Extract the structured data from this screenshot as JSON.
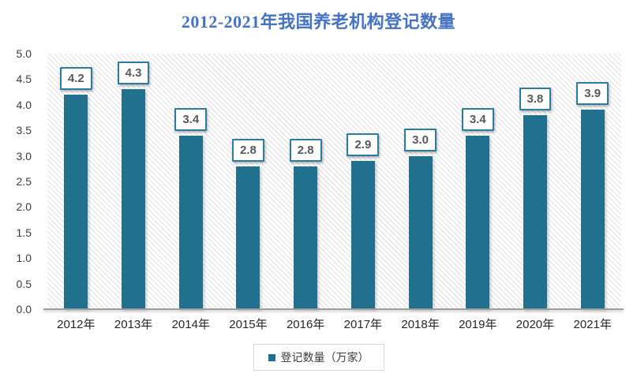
{
  "chart_data": {
    "type": "bar",
    "title": "2012-2021年我国养老机构登记数量",
    "categories": [
      "2012年",
      "2013年",
      "2014年",
      "2015年",
      "2016年",
      "2017年",
      "2018年",
      "2019年",
      "2020年",
      "2021年"
    ],
    "values": [
      4.2,
      4.3,
      3.4,
      2.8,
      2.8,
      2.9,
      3.0,
      3.4,
      3.8,
      3.9
    ],
    "value_labels": [
      "4.2",
      "4.3",
      "3.4",
      "2.8",
      "2.8",
      "2.9",
      "3.0",
      "3.4",
      "3.8",
      "3.9"
    ],
    "series_name": "登记数量（万家）",
    "legend": {
      "label": "登记数量（万家）",
      "position": "bottom"
    },
    "xlabel": "",
    "ylabel": "",
    "ylim": [
      0,
      5
    ],
    "ytick_step": 0.5,
    "yticks": [
      "5.0",
      "4.5",
      "4.0",
      "3.5",
      "3.0",
      "2.5",
      "2.0",
      "1.5",
      "1.0",
      "0.5",
      "0.0"
    ],
    "grid": false,
    "plot_background": "light-downward-diagonal-hatch",
    "colors": {
      "bar": "#21708E",
      "title_text": "#4472C4",
      "value_label_border": "#2B7CA3",
      "value_label_text": "#595959",
      "axis_text": "#3d3d3d",
      "x_axis_text": "#262626",
      "axis_line": "#9e9e9e",
      "hatch_line": "#e7e7e7",
      "legend_border": "#D9D9D9"
    }
  }
}
